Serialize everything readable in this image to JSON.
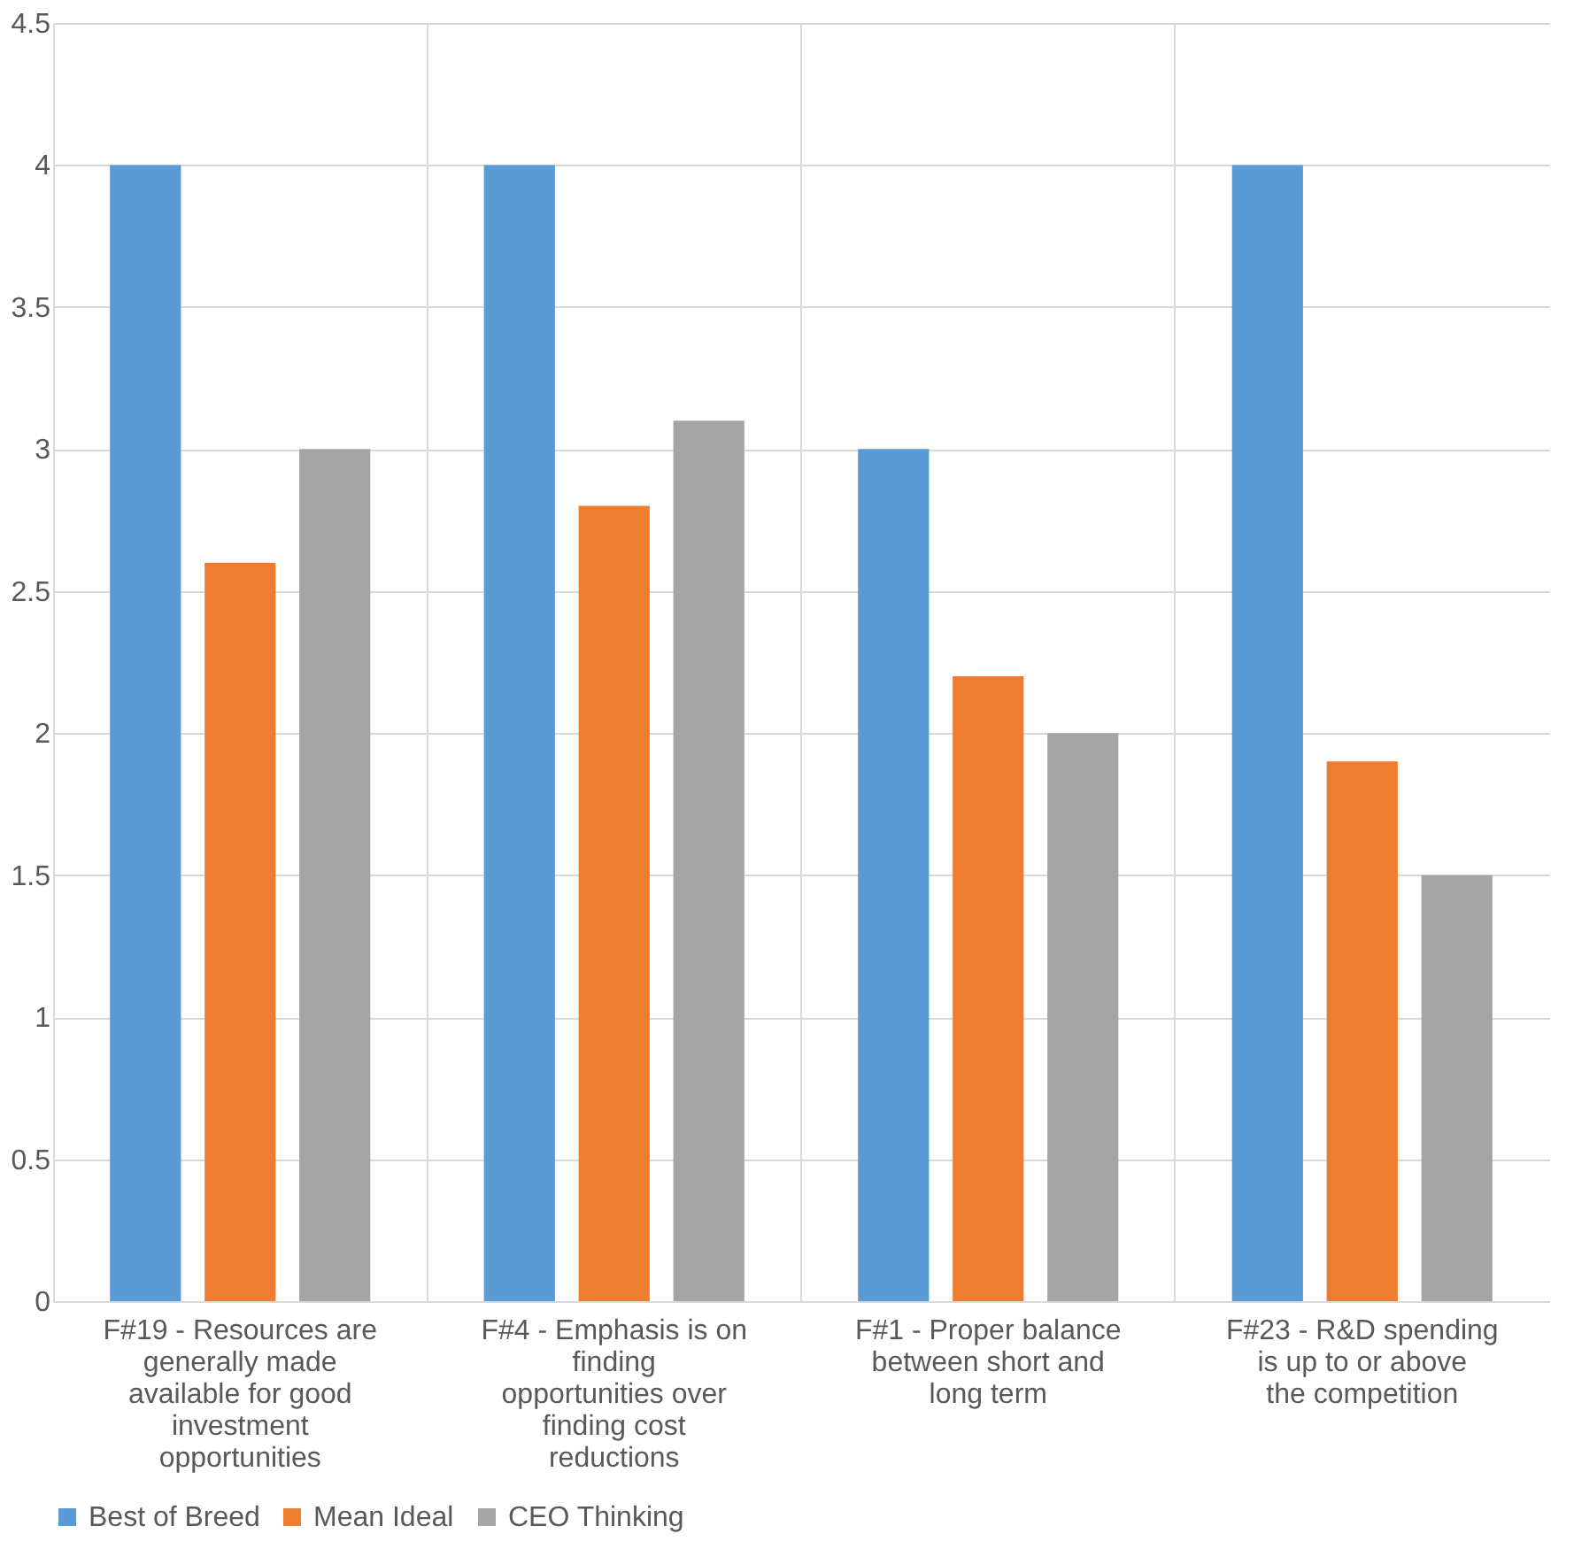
{
  "chart_data": {
    "type": "bar",
    "categories": [
      "F#19 - Resources are generally made available for good investment opportunities",
      "F#4 - Emphasis is on finding opportunities over finding cost reductions",
      "F#1 - Proper balance between short and long term",
      "F#23 - R&D spending is up to or above the competition"
    ],
    "series": [
      {
        "name": "Best of Breed",
        "color": "#5b9bd5",
        "values": [
          4,
          4,
          3,
          4
        ]
      },
      {
        "name": "Mean Ideal",
        "color": "#ed7d31",
        "values": [
          2.6,
          2.8,
          2.2,
          1.9
        ]
      },
      {
        "name": "CEO Thinking",
        "color": "#a5a5a5",
        "values": [
          3,
          3.1,
          2,
          1.5
        ]
      }
    ],
    "ylim": [
      0,
      4.5
    ],
    "yticks": [
      0,
      0.5,
      1,
      1.5,
      2,
      2.5,
      3,
      3.5,
      4,
      4.5
    ],
    "grid": true,
    "legend": "bottom"
  }
}
